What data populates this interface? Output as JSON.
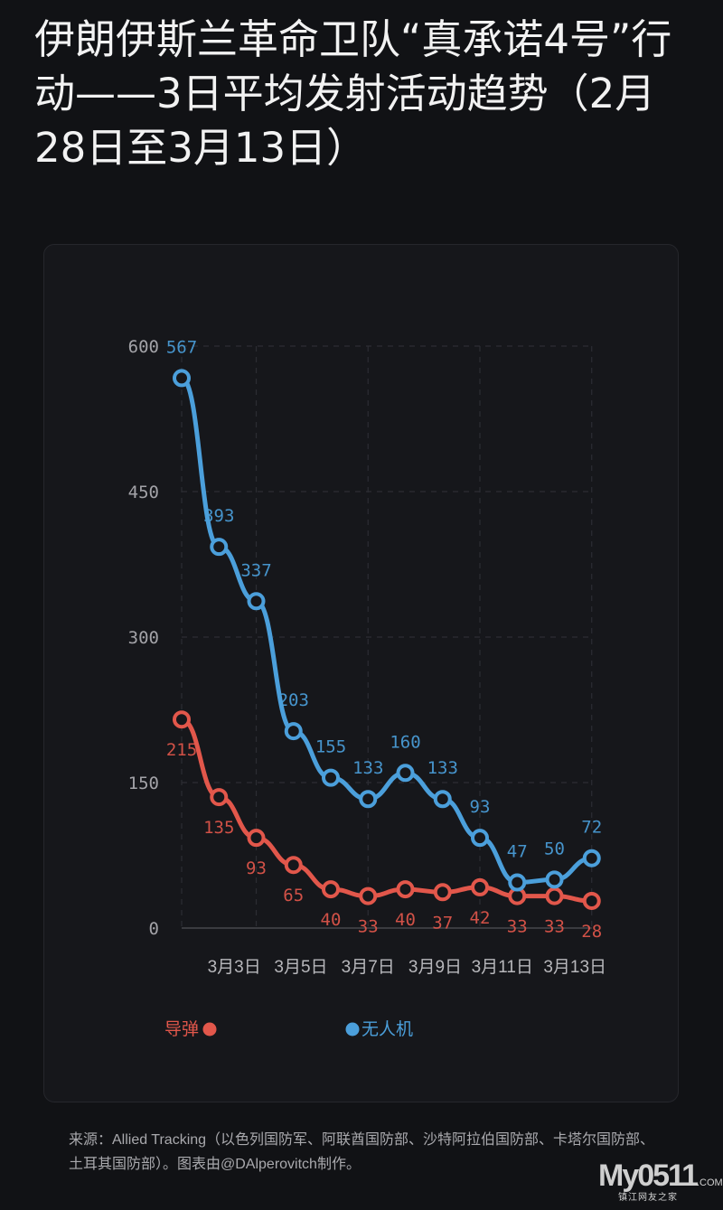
{
  "title": "伊朗伊斯兰革命卫队“真承诺4号”行动——3日平均发射活动趋势（2月28日至3月13日）",
  "chart_data": {
    "type": "line",
    "title": "伊朗伊斯兰革命卫队“真承诺4号”行动——3日平均发射活动趋势（2月28日至3月13日）",
    "x": [
      0,
      1,
      2,
      3,
      4,
      5,
      6,
      7,
      8,
      9,
      10,
      11
    ],
    "x_ticks": [
      {
        "label": "3月3日",
        "pos": 1.41
      },
      {
        "label": "3月5日",
        "pos": 3.2
      },
      {
        "label": "3月7日",
        "pos": 5.0
      },
      {
        "label": "3月9日",
        "pos": 6.8
      },
      {
        "label": "3月11日",
        "pos": 8.6
      },
      {
        "label": "3月13日",
        "pos": 10.55
      }
    ],
    "y_ticks": [
      0,
      150,
      300,
      450,
      600
    ],
    "ylim": [
      0,
      600
    ],
    "grid": true,
    "legend_placement": "bottom-left",
    "series": [
      {
        "name": "导弹",
        "color": "#e2574b",
        "values": [
          215,
          135,
          93,
          65,
          40,
          33,
          40,
          37,
          42,
          33,
          33,
          28
        ]
      },
      {
        "name": "无人机",
        "color": "#4b9fdb",
        "values": [
          567,
          393,
          337,
          203,
          155,
          133,
          160,
          133,
          93,
          47,
          50,
          72
        ]
      }
    ]
  },
  "source": "来源：Allied Tracking（以色列国防军、阿联酋国防部、沙特阿拉伯国防部、卡塔尔国防部、土耳其国防部）。图表由@DAlperovitch制作。",
  "watermark": {
    "logo": "My0511",
    "domain": ".COM",
    "tagline": "镇江网友之家"
  }
}
